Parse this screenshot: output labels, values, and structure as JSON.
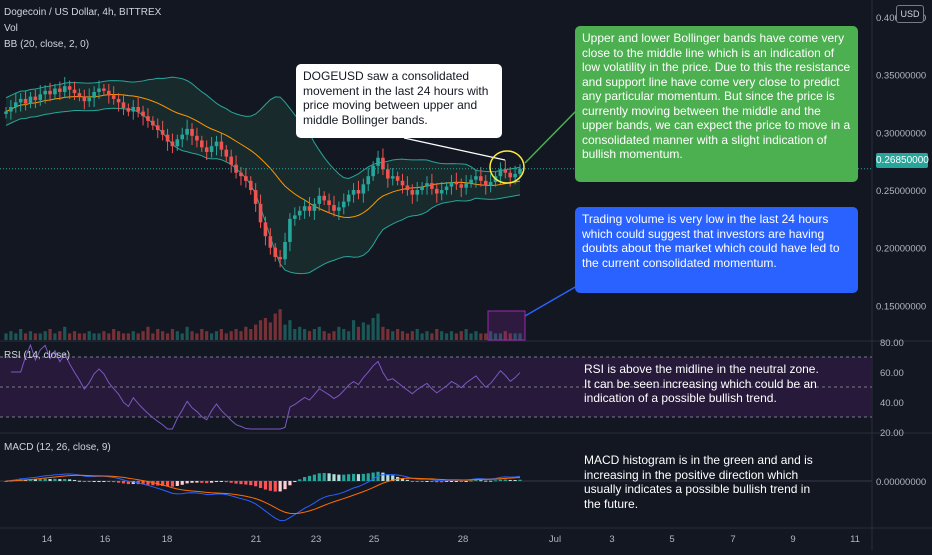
{
  "header": {
    "symbol_line": "Dogecoin / US Dollar, 4h, BITTREX",
    "vol_label": "Vol",
    "bb_label": "BB (20, close, 2, 0)",
    "rsi_label": "RSI (14, close)",
    "macd_label": "MACD (12, 26, close, 9)"
  },
  "currency_button": "USD",
  "last_price_tag": "0.26850000",
  "annotations": {
    "white_callout": "DOGEUSD saw a consolidated movement in the last 24 hours with price moving between upper and middle Bollinger bands.",
    "green_callout": "Upper and lower Bollinger bands have come very close to the middle line which is an indication of low volatility in the price. Due to this the resistance and support line have come very close to predict any particular momentum. But since the price is currently moving between the middle and the upper bands, we can expect the price to move in a consolidated manner with a slight indication of bullish momentum.",
    "blue_callout": "Trading volume is very low in the last 24 hours which could suggest that investors are having doubts about the market which could have led to the current consolidated momentum.",
    "rsi_note": "RSI is above the midline in the neutral zone. It can be seen increasing which could be an indication of a possible bullish trend.",
    "macd_note": "MACD histogram is in the green and and is increasing in the positive direction which usually indicates a possible bullish trend in the future."
  },
  "colors": {
    "background": "#131722",
    "up_candle": "#26a69a",
    "down_candle": "#ef5350",
    "bb_basis": "#ff9800",
    "bb_band": "#26a69a",
    "bb_fill": "#1f3b35",
    "rsi_line": "#7e57c2",
    "rsi_band": "#2a1a3e",
    "macd_line": "#2962ff",
    "signal_line": "#ff6d00",
    "hist_up_strong": "#26a69a",
    "hist_up_weak": "#b2dfdb",
    "hist_down_strong": "#ff5252",
    "hist_down_weak": "#ffcdd2"
  },
  "chart_data": [
    {
      "type": "candlestick",
      "title": "Dogecoin / US Dollar, 4h, BITTREX",
      "x_tick_labels": [
        "14",
        "16",
        "18",
        "21",
        "23",
        "25",
        "28",
        "Jul",
        "3",
        "5",
        "7",
        "9",
        "11"
      ],
      "y_tick_labels": [
        "0.40000000",
        "0.35000000",
        "0.30000000",
        "0.25000000",
        "0.20000000",
        "0.15000000"
      ],
      "ylim": [
        0.12,
        0.4
      ],
      "last_price": 0.2685,
      "candles_close": [
        0.318,
        0.322,
        0.326,
        0.329,
        0.325,
        0.331,
        0.328,
        0.333,
        0.336,
        0.333,
        0.338,
        0.335,
        0.34,
        0.337,
        0.334,
        0.331,
        0.327,
        0.33,
        0.335,
        0.338,
        0.336,
        0.332,
        0.329,
        0.326,
        0.321,
        0.318,
        0.322,
        0.318,
        0.314,
        0.31,
        0.306,
        0.302,
        0.298,
        0.292,
        0.288,
        0.294,
        0.298,
        0.303,
        0.297,
        0.293,
        0.287,
        0.283,
        0.288,
        0.292,
        0.285,
        0.279,
        0.272,
        0.265,
        0.262,
        0.258,
        0.25,
        0.238,
        0.222,
        0.21,
        0.2,
        0.192,
        0.19,
        0.205,
        0.225,
        0.228,
        0.232,
        0.236,
        0.232,
        0.238,
        0.245,
        0.241,
        0.237,
        0.232,
        0.235,
        0.24,
        0.246,
        0.25,
        0.247,
        0.255,
        0.262,
        0.271,
        0.278,
        0.268,
        0.26,
        0.262,
        0.258,
        0.254,
        0.25,
        0.246,
        0.25,
        0.253,
        0.256,
        0.251,
        0.247,
        0.25,
        0.253,
        0.257,
        0.255,
        0.252,
        0.256,
        0.259,
        0.262,
        0.258,
        0.254,
        0.257,
        0.262,
        0.268,
        0.265,
        0.261,
        0.264,
        0.2685
      ],
      "volume": [
        3,
        4,
        3,
        5,
        3,
        4,
        3,
        3,
        4,
        5,
        3,
        4,
        6,
        3,
        4,
        3,
        3,
        4,
        3,
        3,
        4,
        3,
        5,
        4,
        3,
        3,
        4,
        3,
        4,
        6,
        3,
        5,
        4,
        3,
        5,
        4,
        3,
        6,
        4,
        3,
        5,
        4,
        3,
        4,
        5,
        3,
        4,
        5,
        4,
        6,
        5,
        7,
        9,
        10,
        8,
        12,
        14,
        7,
        9,
        5,
        6,
        5,
        4,
        5,
        6,
        4,
        3,
        4,
        6,
        5,
        4,
        9,
        6,
        8,
        7,
        10,
        12,
        6,
        5,
        4,
        5,
        4,
        3,
        4,
        5,
        3,
        4,
        3,
        5,
        4,
        3,
        4,
        3,
        4,
        5,
        3,
        4,
        3,
        3,
        4,
        3,
        3,
        4,
        3,
        3,
        3
      ]
    },
    {
      "type": "line",
      "title": "RSI (14, close)",
      "y_tick_labels": [
        "80.00",
        "60.00",
        "40.00",
        "20.00"
      ],
      "ylim": [
        20,
        80
      ],
      "band": [
        30,
        70
      ],
      "midline": 50
    },
    {
      "type": "bar",
      "title": "MACD (12, 26, close, 9)",
      "y_tick_labels": [
        "0.00000000"
      ]
    }
  ]
}
